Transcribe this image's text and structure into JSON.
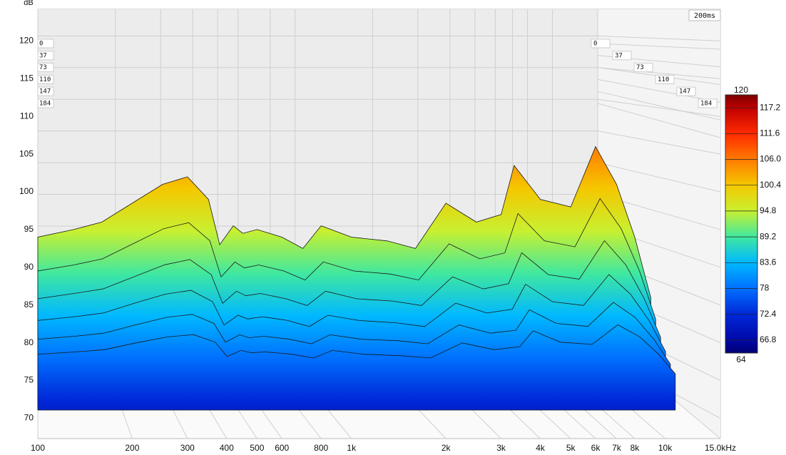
{
  "chart_data": {
    "type": "waterfall",
    "y_label": "dB",
    "time_label": "200ms",
    "xlim": [
      100,
      15000
    ],
    "ylim": [
      67.3,
      124.2
    ],
    "log_x": true,
    "grid": true,
    "yticks": [
      70,
      75,
      80,
      85,
      90,
      95,
      100,
      105,
      110,
      115,
      120
    ],
    "xticks": [
      100,
      200,
      300,
      400,
      500,
      600,
      800,
      {
        "value": 1000,
        "label": "1k"
      },
      {
        "value": 2000,
        "label": "2k"
      },
      {
        "value": 3000,
        "label": "3k"
      },
      {
        "value": 4000,
        "label": "4k"
      },
      {
        "value": 5000,
        "label": "5k"
      },
      {
        "value": 6000,
        "label": "6k"
      },
      {
        "value": 7000,
        "label": "7k"
      },
      {
        "value": 8000,
        "label": "8k"
      },
      {
        "value": 10000,
        "label": "10k"
      },
      {
        "value": 15000,
        "label": "15.0kHz"
      }
    ],
    "zticks": [
      0,
      37,
      73,
      110,
      147,
      184
    ],
    "x": [
      100,
      130,
      160,
      200,
      250,
      300,
      350,
      380,
      420,
      450,
      500,
      600,
      700,
      800,
      1000,
      1300,
      1600,
      2000,
      2500,
      3000,
      3300,
      4000,
      5000,
      6000,
      7000,
      8000,
      9000
    ],
    "series": [
      {
        "values": [
          94,
          95,
          96,
          98.5,
          101,
          102,
          99,
          93,
          95.5,
          94.5,
          95,
          94,
          92.5,
          95.5,
          94,
          93.5,
          92.5,
          98.5,
          96,
          97,
          103.5,
          99,
          98,
          106,
          101,
          94,
          86
        ]
      },
      {
        "values": [
          89.8,
          90.6,
          91.4,
          93.4,
          95.4,
          96.2,
          93.8,
          89,
          91,
          90.2,
          90.6,
          89.8,
          88.6,
          91,
          89.8,
          89.4,
          88.6,
          93.4,
          91.4,
          92.2,
          97.4,
          93.8,
          93,
          99.4,
          95.4,
          89.8,
          83.4
        ]
      },
      {
        "values": [
          86.4,
          87.1,
          87.7,
          89.3,
          90.9,
          91.6,
          89.6,
          85.8,
          87.4,
          86.8,
          87.1,
          86.4,
          85.5,
          87.4,
          86.4,
          86.1,
          85.5,
          89.3,
          87.7,
          88.4,
          92.5,
          89.6,
          89,
          94.1,
          90.9,
          86.4,
          81.3
        ]
      },
      {
        "values": [
          83.8,
          84.3,
          84.8,
          86.1,
          87.3,
          87.8,
          86.3,
          83.2,
          84.5,
          84,
          84.3,
          83.8,
          83,
          84.5,
          83.8,
          83.5,
          83,
          86.1,
          84.8,
          85.3,
          88.6,
          86.3,
          85.8,
          89.9,
          87.3,
          83.8,
          79.7
        ]
      },
      {
        "values": [
          81.6,
          82,
          82.4,
          83.5,
          84.5,
          84.9,
          83.7,
          81.2,
          82.2,
          81.8,
          82,
          81.6,
          81,
          82.2,
          81.6,
          81.4,
          81,
          83.5,
          82.4,
          82.8,
          85.5,
          83.7,
          83.3,
          86.5,
          84.5,
          81.6,
          78.3
        ]
      },
      {
        "values": [
          79.9,
          80.2,
          80.5,
          81.4,
          82.2,
          82.5,
          81.5,
          79.6,
          80.4,
          80.1,
          80.2,
          79.9,
          79.4,
          80.4,
          79.9,
          79.7,
          79.4,
          81.4,
          80.5,
          80.9,
          83,
          81.5,
          81.2,
          83.8,
          82.2,
          79.9,
          77.3
        ]
      }
    ],
    "colorbar": {
      "min": 64,
      "max": 120,
      "ticks": [
        117.2,
        111.6,
        106.0,
        100.4,
        94.8,
        89.2,
        83.6,
        78,
        72.4,
        66.8
      ],
      "tick_labels": [
        "117.2",
        "111.6",
        "106.0",
        "100.4",
        "94.8",
        "89.2",
        "83.6",
        "78",
        "72.4",
        "66.8"
      ],
      "colors": [
        "#7a0000",
        "#c00000",
        "#ff2a00",
        "#ff7a00",
        "#f5c800",
        "#c8f030",
        "#40e8a0",
        "#00b8ff",
        "#0070ff",
        "#0028d8",
        "#0008a8",
        "#000070"
      ]
    }
  }
}
